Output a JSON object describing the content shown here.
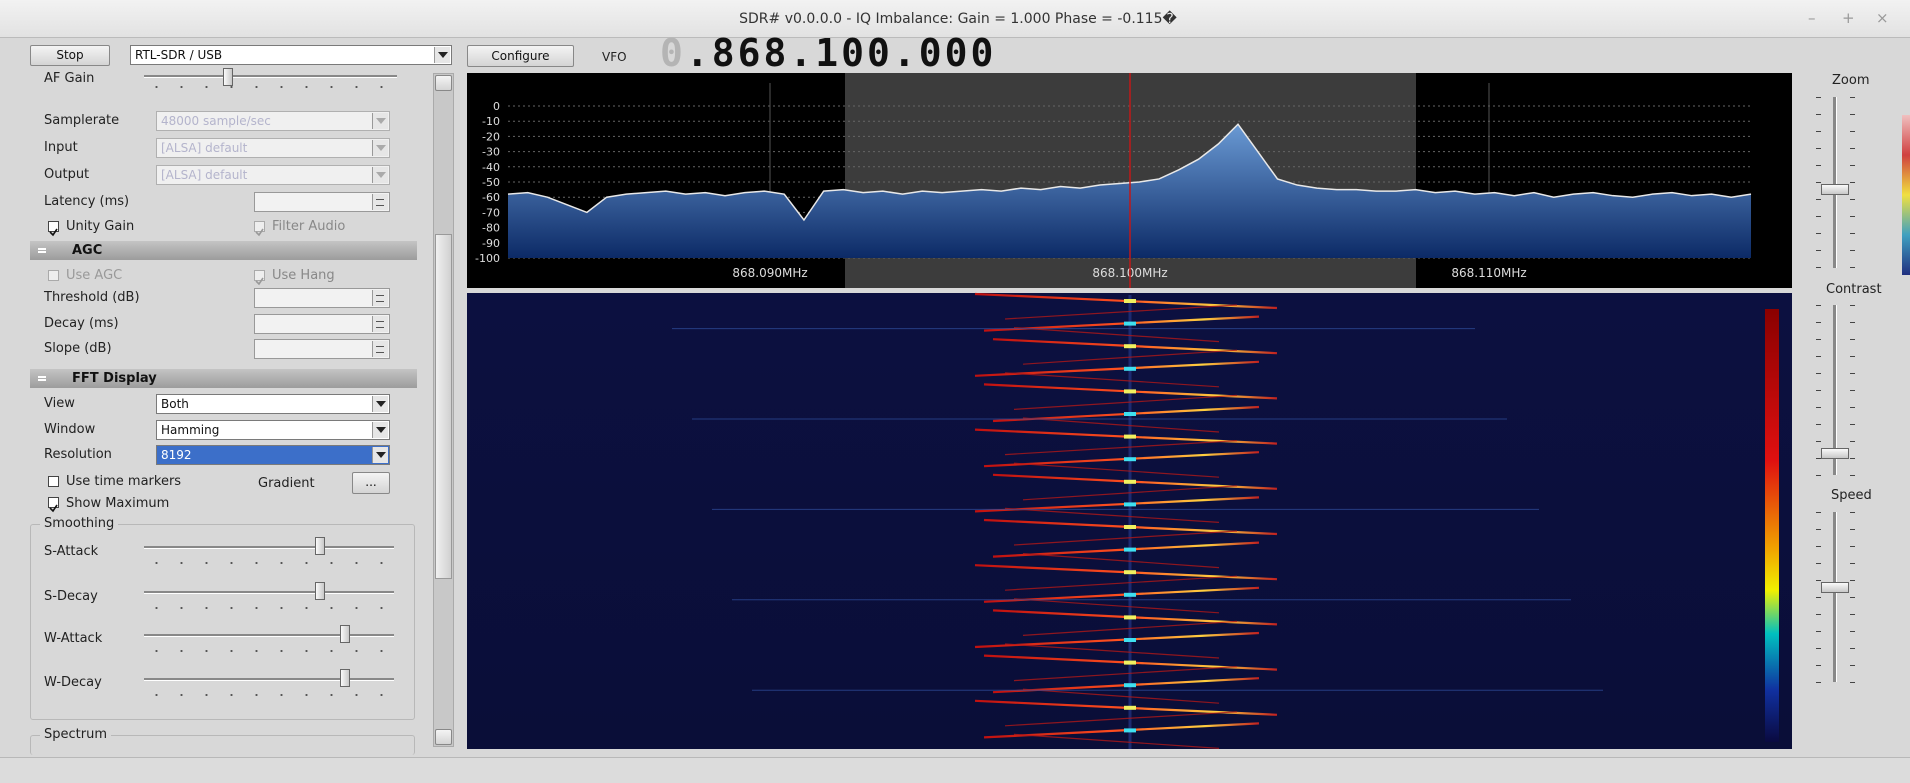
{
  "window": {
    "title": "SDR# v0.0.0.0 - IQ Imbalance: Gain = 1.000 Phase = -0.115�",
    "minimize": "–",
    "maximize": "+",
    "close": "×"
  },
  "toolbar": {
    "stop": "Stop",
    "device": "RTL-SDR / USB",
    "configure": "Configure",
    "vfo_label": "VFO",
    "frequency_leading": "0",
    "frequency": ".868.100.000"
  },
  "audio": {
    "af_gain": "AF Gain",
    "samplerate_label": "Samplerate",
    "samplerate": "48000 sample/sec",
    "input_label": "Input",
    "input": "[ALSA] default",
    "output_label": "Output",
    "output": "[ALSA] default",
    "latency_label": "Latency (ms)",
    "unity_gain": "Unity Gain",
    "filter_audio": "Filter Audio"
  },
  "agc": {
    "header": "AGC",
    "use_agc": "Use AGC",
    "use_hang": "Use Hang",
    "threshold": "Threshold (dB)",
    "decay": "Decay (ms)",
    "slope": "Slope (dB)"
  },
  "fft": {
    "header": "FFT Display",
    "view_label": "View",
    "view": "Both",
    "window_label": "Window",
    "window": "Hamming",
    "resolution_label": "Resolution",
    "resolution": "8192",
    "time_markers": "Use time markers",
    "gradient": "Gradient",
    "gradient_button": "...",
    "show_maximum": "Show Maximum",
    "smoothing": "Smoothing",
    "s_attack": "S-Attack",
    "s_decay": "S-Decay",
    "w_attack": "W-Attack",
    "w_decay": "W-Decay",
    "spectrum": "Spectrum"
  },
  "right_panel": {
    "zoom": "Zoom",
    "contrast": "Contrast",
    "speed": "Speed"
  },
  "spectrum": {
    "ylim": [
      -100,
      0
    ],
    "yticks": [
      0,
      -10,
      -20,
      -30,
      -40,
      -50,
      -60,
      -70,
      -80,
      -90,
      -100
    ],
    "xticks": [
      "868.090MHz",
      "868.100MHz",
      "868.110MHz"
    ],
    "trace": [
      -58,
      -57,
      -60,
      -65,
      -70,
      -60,
      -58,
      -57,
      -56,
      -58,
      -57,
      -59,
      -57,
      -56,
      -58,
      -75,
      -56,
      -55,
      -57,
      -56,
      -58,
      -56,
      -57,
      -56,
      -55,
      -56,
      -54,
      -55,
      -53,
      -54,
      -52,
      -51,
      -50,
      -48,
      -42,
      -35,
      -25,
      -12,
      -30,
      -48,
      -52,
      -54,
      -55,
      -55,
      -56,
      -56,
      -55,
      -57,
      -56,
      -58,
      -57,
      -59,
      -57,
      -60,
      -58,
      -57,
      -59,
      -60,
      -58,
      -57,
      -59,
      -58,
      -60,
      -58
    ]
  }
}
